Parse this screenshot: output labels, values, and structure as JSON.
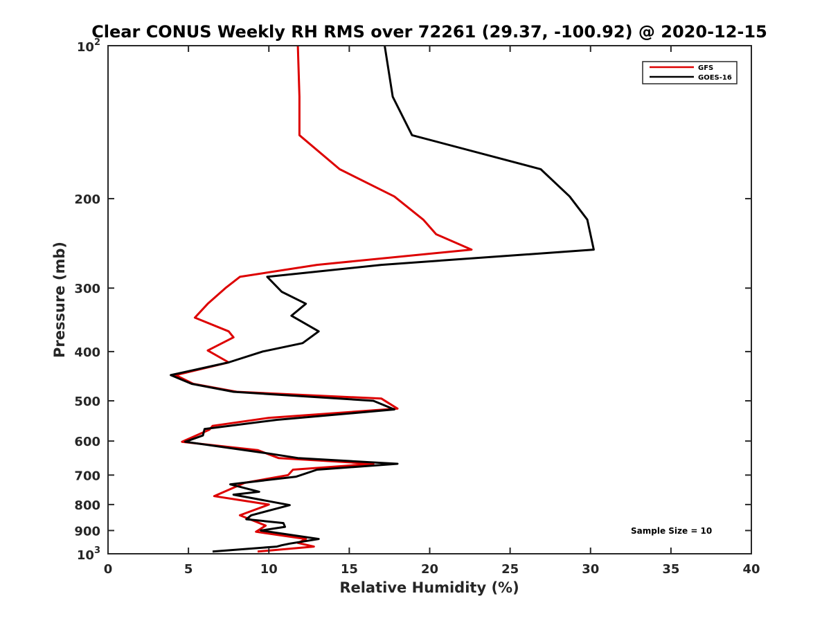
{
  "chart_data": {
    "type": "line",
    "title": "Clear CONUS Weekly RH RMS over 72261 (29.37, -100.92) @ 2020-12-15",
    "xlabel": "Relative Humidity (%)",
    "ylabel": "Pressure (mb)",
    "xlim": [
      0,
      40
    ],
    "ylim": [
      100,
      1000
    ],
    "y_scale": "log",
    "y_reversed": true,
    "x_ticks": [
      0,
      5,
      10,
      15,
      20,
      25,
      30,
      35,
      40
    ],
    "x_tick_labels": [
      "0",
      "5",
      "10",
      "15",
      "20",
      "25",
      "30",
      "35",
      "40"
    ],
    "y_ticks": [
      200,
      300,
      400,
      500,
      600,
      700,
      800,
      900
    ],
    "y_tick_labels": [
      "200",
      "300",
      "400",
      "500",
      "600",
      "700",
      "800",
      "900"
    ],
    "y_end_labels": {
      "base": "10",
      "top_exp": "2",
      "bottom_exp": "3"
    },
    "grid": false,
    "legend_position": "top-right",
    "series": [
      {
        "name": "GFS",
        "color": "#dd0000",
        "points": [
          [
            11.8,
            100
          ],
          [
            11.9,
            126
          ],
          [
            11.9,
            150
          ],
          [
            14.4,
            175
          ],
          [
            17.8,
            198
          ],
          [
            19.6,
            220
          ],
          [
            20.4,
            235
          ],
          [
            22.6,
            252
          ],
          [
            13.0,
            270
          ],
          [
            8.2,
            285
          ],
          [
            7.3,
            300
          ],
          [
            6.2,
            322
          ],
          [
            5.4,
            343
          ],
          [
            7.5,
            365
          ],
          [
            7.8,
            375
          ],
          [
            6.2,
            398
          ],
          [
            7.5,
            420
          ],
          [
            4.2,
            445
          ],
          [
            5.3,
            463
          ],
          [
            8.0,
            480
          ],
          [
            17.0,
            495
          ],
          [
            18.0,
            518
          ],
          [
            10.0,
            540
          ],
          [
            6.5,
            560
          ],
          [
            6.3,
            570
          ],
          [
            4.6,
            602
          ],
          [
            9.3,
            625
          ],
          [
            10.6,
            648
          ],
          [
            16.5,
            665
          ],
          [
            11.5,
            683
          ],
          [
            11.2,
            700
          ],
          [
            8.5,
            725
          ],
          [
            6.6,
            770
          ],
          [
            10.0,
            800
          ],
          [
            8.2,
            840
          ],
          [
            9.8,
            880
          ],
          [
            9.2,
            905
          ],
          [
            12.3,
            935
          ],
          [
            11.8,
            952
          ],
          [
            12.8,
            968
          ],
          [
            9.3,
            990
          ]
        ]
      },
      {
        "name": "GOES-16",
        "color": "#000000",
        "points": [
          [
            17.2,
            100
          ],
          [
            17.7,
            126
          ],
          [
            18.9,
            150
          ],
          [
            26.9,
            175
          ],
          [
            28.7,
            198
          ],
          [
            29.8,
            220
          ],
          [
            30.2,
            252
          ],
          [
            17.0,
            270
          ],
          [
            9.9,
            285
          ],
          [
            10.8,
            305
          ],
          [
            12.3,
            322
          ],
          [
            11.4,
            340
          ],
          [
            13.1,
            365
          ],
          [
            12.1,
            385
          ],
          [
            9.6,
            400
          ],
          [
            7.5,
            420
          ],
          [
            3.9,
            445
          ],
          [
            5.2,
            463
          ],
          [
            7.8,
            480
          ],
          [
            16.5,
            500
          ],
          [
            17.8,
            520
          ],
          [
            10.5,
            545
          ],
          [
            6.0,
            568
          ],
          [
            5.9,
            585
          ],
          [
            4.8,
            602
          ],
          [
            10.0,
            635
          ],
          [
            11.8,
            648
          ],
          [
            18.0,
            665
          ],
          [
            13.0,
            683
          ],
          [
            11.7,
            705
          ],
          [
            7.6,
            730
          ],
          [
            9.4,
            755
          ],
          [
            7.8,
            765
          ],
          [
            11.3,
            802
          ],
          [
            8.9,
            840
          ],
          [
            8.6,
            855
          ],
          [
            10.9,
            870
          ],
          [
            11.0,
            885
          ],
          [
            9.5,
            900
          ],
          [
            13.1,
            935
          ],
          [
            11.3,
            955
          ],
          [
            10.8,
            962
          ],
          [
            10.5,
            968
          ],
          [
            6.5,
            990
          ]
        ]
      }
    ],
    "annotation": "Sample Size = 10"
  }
}
